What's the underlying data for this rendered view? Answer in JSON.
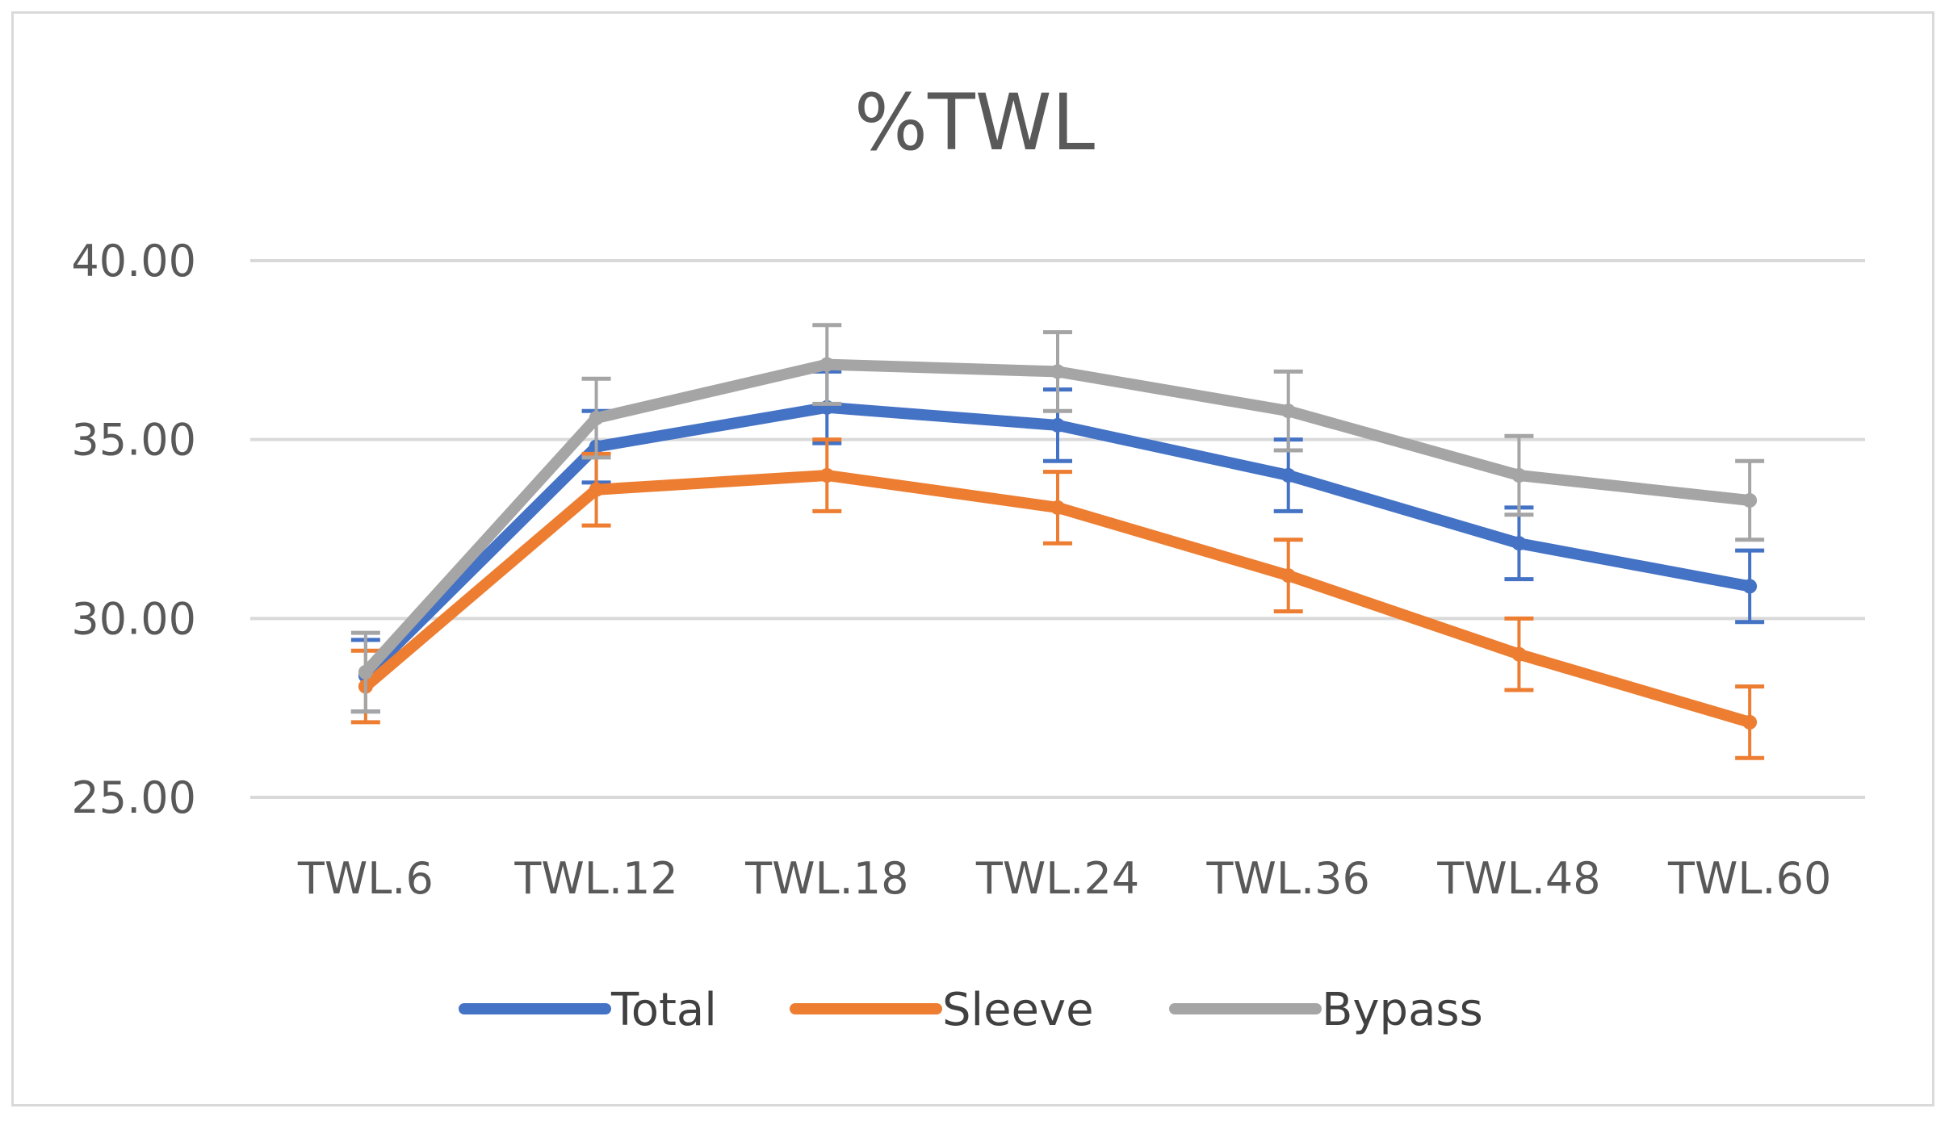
{
  "chart_data": {
    "type": "line",
    "title": "%TWL",
    "xlabel": "",
    "ylabel": "",
    "ylim": [
      25,
      40
    ],
    "yticks": [
      "25.00",
      "30.00",
      "35.00",
      "40.00"
    ],
    "ytick_values": [
      25,
      30,
      35,
      40
    ],
    "categories": [
      "TWL.6",
      "TWL.12",
      "TWL.18",
      "TWL.24",
      "TWL.36",
      "TWL.48",
      "TWL.60"
    ],
    "grid": "horizontal",
    "legend_position": "bottom",
    "series": [
      {
        "name": "Total",
        "color": "#4472c4",
        "values": [
          28.4,
          34.8,
          35.9,
          35.4,
          34.0,
          32.1,
          30.9
        ],
        "error": [
          1.0,
          1.0,
          1.0,
          1.0,
          1.0,
          1.0,
          1.0
        ]
      },
      {
        "name": "Sleeve",
        "color": "#ed7d31",
        "values": [
          28.1,
          33.6,
          34.0,
          33.1,
          31.2,
          29.0,
          27.1
        ],
        "error": [
          1.0,
          1.0,
          1.0,
          1.0,
          1.0,
          1.0,
          1.0
        ]
      },
      {
        "name": "Bypass",
        "color": "#a5a5a5",
        "values": [
          28.5,
          35.6,
          37.1,
          36.9,
          35.8,
          34.0,
          33.3
        ],
        "error": [
          1.1,
          1.1,
          1.1,
          1.1,
          1.1,
          1.1,
          1.1
        ]
      }
    ]
  }
}
